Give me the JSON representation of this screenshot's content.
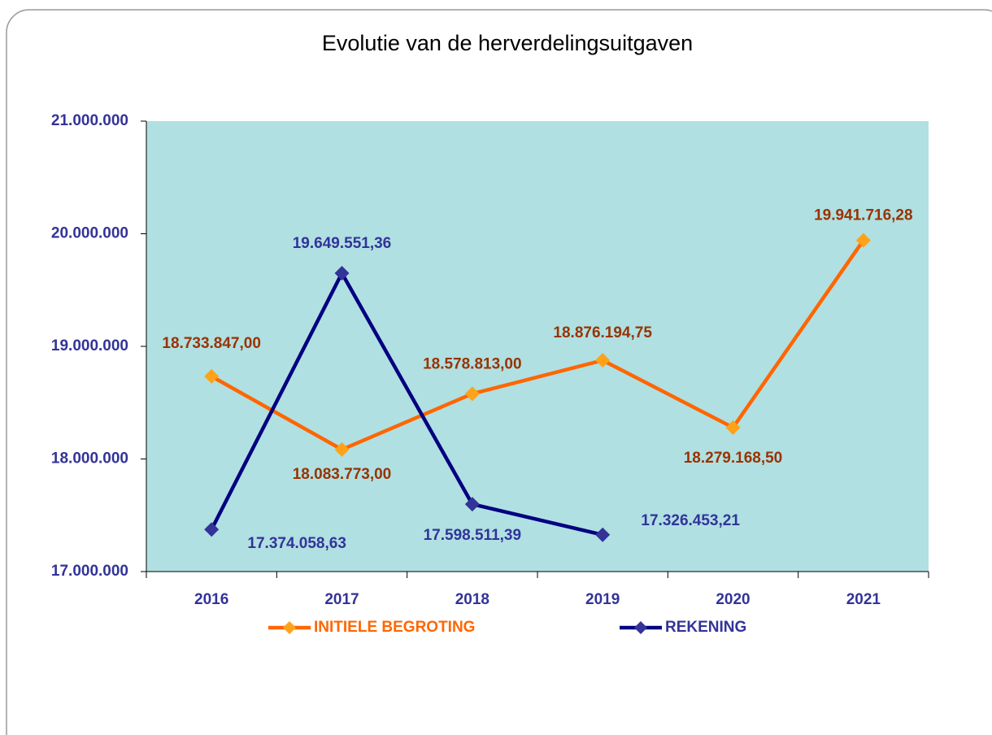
{
  "chart_data": {
    "type": "line",
    "title": "Evolutie van de herverdelingsuitgaven",
    "categories": [
      "2016",
      "2017",
      "2018",
      "2019",
      "2020",
      "2021"
    ],
    "series": [
      {
        "name": "INITIELE BEGROTING",
        "color": "#ff6600",
        "marker_color": "#ffa21a",
        "label_color": "#993300",
        "values": [
          18733847.0,
          18083773.0,
          18578813.0,
          18876194.75,
          18279168.5,
          19941716.28
        ],
        "value_labels": [
          "18.733.847,00",
          "18.083.773,00",
          "18.578.813,00",
          "18.876.194,75",
          "18.279.168,50",
          "19.941.716,28"
        ]
      },
      {
        "name": "REKENING",
        "color": "#000080",
        "marker_color": "#333399",
        "label_color": "#333399",
        "values": [
          17374058.63,
          19649551.36,
          17598511.39,
          17326453.21,
          null,
          null
        ],
        "value_labels": [
          "17.374.058,63",
          "19.649.551,36",
          "17.598.511,39",
          "17.326.453,21",
          null,
          null
        ]
      }
    ],
    "ylim": [
      17000000,
      21000000
    ],
    "yticks": [
      {
        "value": 17000000,
        "label": "17.000.000"
      },
      {
        "value": 18000000,
        "label": "18.000.000"
      },
      {
        "value": 19000000,
        "label": "19.000.000"
      },
      {
        "value": 20000000,
        "label": "20.000.000"
      },
      {
        "value": 21000000,
        "label": "21.000.000"
      }
    ],
    "plot_background": "#b0e0e2",
    "legend": "bottom"
  }
}
